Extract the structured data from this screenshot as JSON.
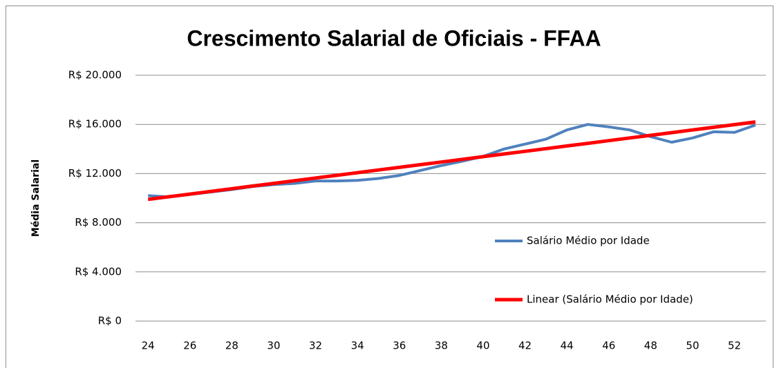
{
  "chart_data": {
    "type": "line",
    "title": "Crescimento Salarial de Oficiais - FFAA",
    "y_label": "Média Salarial",
    "x": [
      24,
      25,
      26,
      27,
      28,
      29,
      30,
      31,
      32,
      33,
      34,
      35,
      36,
      37,
      38,
      39,
      40,
      41,
      42,
      43,
      44,
      45,
      46,
      47,
      48,
      49,
      50,
      51,
      52,
      53
    ],
    "series": [
      {
        "name": "Salário Médio por Idade",
        "color": "#4f81bd",
        "values": [
          10200,
          10100,
          10300,
          10500,
          10700,
          10950,
          11100,
          11200,
          11400,
          11400,
          11450,
          11600,
          11850,
          12250,
          12650,
          13000,
          13400,
          14000,
          14400,
          14800,
          15550,
          16000,
          15800,
          15550,
          15000,
          14550,
          14900,
          15400,
          15350,
          15950
        ]
      },
      {
        "name": "Linear (Salário Médio por Idade)",
        "color": "#ff0000",
        "values": [
          9900,
          10117,
          10334,
          10552,
          10769,
          10986,
          11203,
          11421,
          11638,
          11855,
          12072,
          12290,
          12507,
          12724,
          12941,
          13159,
          13376,
          13593,
          13810,
          14028,
          14245,
          14462,
          14679,
          14897,
          15114,
          15331,
          15548,
          15766,
          15983,
          16200
        ]
      }
    ],
    "xlim": [
      23.4,
      53.5
    ],
    "xticks": [
      24,
      26,
      28,
      30,
      32,
      34,
      36,
      38,
      40,
      42,
      44,
      46,
      48,
      50,
      52
    ],
    "ylim": [
      0,
      20000
    ],
    "yticks": [
      {
        "value": 0,
        "label": "R$ 0"
      },
      {
        "value": 4000,
        "label": "R$ 4.000"
      },
      {
        "value": 8000,
        "label": "R$ 8.000"
      },
      {
        "value": 12000,
        "label": "R$ 12.000"
      },
      {
        "value": 16000,
        "label": "R$ 16.000"
      },
      {
        "value": 20000,
        "label": "R$ 20.000"
      }
    ],
    "grid": true
  }
}
